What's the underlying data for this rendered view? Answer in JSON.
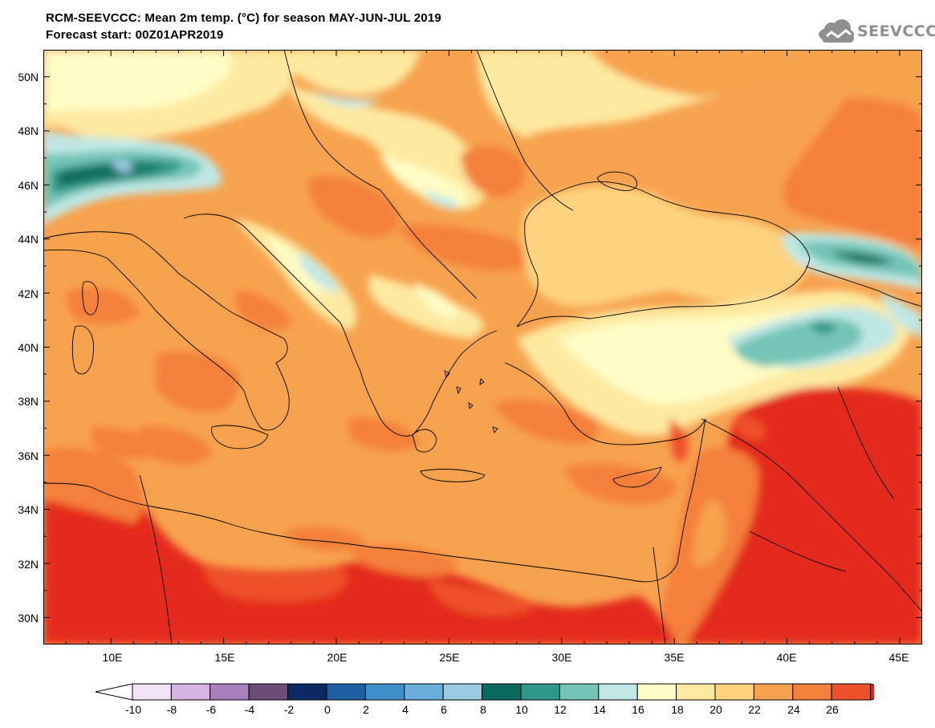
{
  "title": {
    "line1": "RCM-SEEVCCC: Mean 2m temp. (°C) for season MAY-JUN-JUL 2019",
    "line2": "Forecast start: 00Z01APR2019"
  },
  "logo": {
    "text": "SEEVCCC",
    "icon": "cloud-logo-icon",
    "color": "#8f8f8f"
  },
  "map": {
    "variable": "Mean 2m temp. (°C)",
    "region": "Southeastern Europe, Eastern Mediterranean and Middle East",
    "lat_range": [
      29,
      51
    ],
    "lon_range": [
      7,
      46
    ],
    "lat_ticks": [
      "50N",
      "48N",
      "46N",
      "44N",
      "42N",
      "40N",
      "38N",
      "36N",
      "34N",
      "32N",
      "30N"
    ],
    "lon_ticks": [
      "10E",
      "15E",
      "20E",
      "25E",
      "30E",
      "35E",
      "40E",
      "45E"
    ],
    "colors": {
      "sea_mediterranean": "#f7a24e",
      "black_sea": "#fed37f",
      "africa": "#e42b1e",
      "coast": "#000000"
    }
  },
  "colorbar": {
    "labels": [
      "-10",
      "-8",
      "-6",
      "-4",
      "-2",
      "0",
      "2",
      "4",
      "6",
      "8",
      "10",
      "12",
      "14",
      "16",
      "18",
      "20",
      "22",
      "24",
      "26"
    ],
    "below_color": "#ffffff",
    "above_color": "#e1251d",
    "colors": [
      "#f2e4f6",
      "#d6b3e2",
      "#a881bd",
      "#6d4d78",
      "#0b2a63",
      "#1e5fa3",
      "#3e8ec8",
      "#6aaedb",
      "#9ccbe4",
      "#0a6a5c",
      "#2e9888",
      "#74c4b7",
      "#bfe7e5",
      "#fffcc5",
      "#fde9a0",
      "#fed37f",
      "#f7a24e",
      "#f4803b",
      "#ee5129"
    ]
  }
}
